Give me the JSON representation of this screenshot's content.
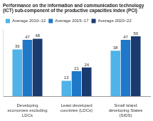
{
  "chart_data": {
    "type": "bar",
    "title": "Performance on the information and communication technology (ICT) sub-component of the productive capacities index (PCI)",
    "categories": [
      "Developing economies excluding LDCs",
      "Least developed countries (LDCs)",
      "Small island developing States (SIDS)"
    ],
    "series": [
      {
        "name": "Average 2010–12",
        "color": "#4fb3e8",
        "values": [
          39,
          13,
          38
        ]
      },
      {
        "name": "Average 2015–17",
        "color": "#1f78c8",
        "values": [
          47,
          21,
          47
        ]
      },
      {
        "name": "Average 2020–22",
        "color": "#1b3a70",
        "values": [
          48,
          24,
          50
        ]
      }
    ],
    "ylim": [
      0,
      55
    ],
    "grid": false,
    "legend": "top-left",
    "data_labels": true,
    "tick_labels": "x"
  }
}
